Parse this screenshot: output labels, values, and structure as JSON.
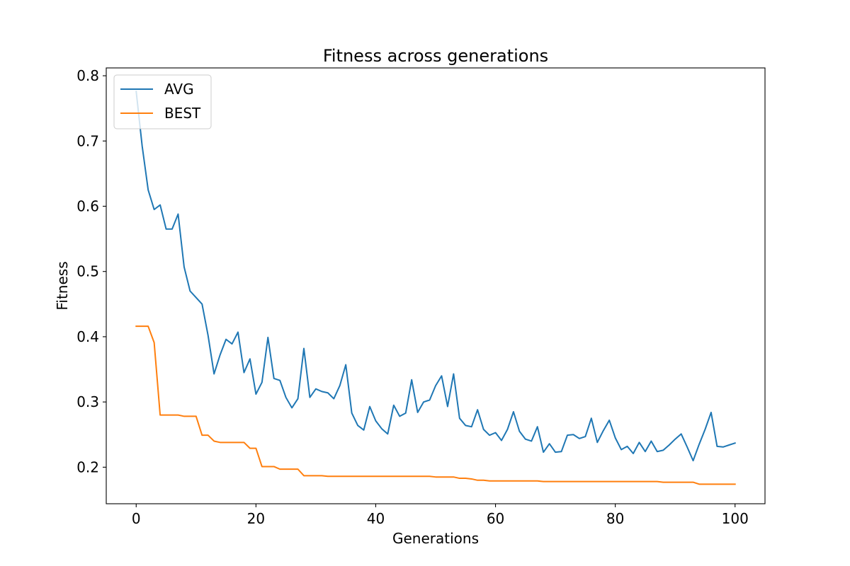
{
  "chart_data": {
    "type": "line",
    "title": "Fitness across generations",
    "xlabel": "Generations",
    "ylabel": "Fitness",
    "xlim": [
      -5,
      105
    ],
    "ylim": [
      0.144,
      0.812
    ],
    "xticks": [
      0,
      20,
      40,
      60,
      80,
      100
    ],
    "yticks": [
      0.2,
      0.3,
      0.4,
      0.5,
      0.6,
      0.7,
      0.8
    ],
    "grid": false,
    "legend": "top-left",
    "x": [
      0,
      1,
      2,
      3,
      4,
      5,
      6,
      7,
      8,
      9,
      10,
      11,
      12,
      13,
      14,
      15,
      16,
      17,
      18,
      19,
      20,
      21,
      22,
      23,
      24,
      25,
      26,
      27,
      28,
      29,
      30,
      31,
      32,
      33,
      34,
      35,
      36,
      37,
      38,
      39,
      40,
      41,
      42,
      43,
      44,
      45,
      46,
      47,
      48,
      49,
      50,
      51,
      52,
      53,
      54,
      55,
      56,
      57,
      58,
      59,
      60,
      61,
      62,
      63,
      64,
      65,
      66,
      67,
      68,
      69,
      70,
      71,
      72,
      73,
      74,
      75,
      76,
      77,
      78,
      79,
      80,
      81,
      82,
      83,
      84,
      85,
      86,
      87,
      88,
      89,
      90,
      91,
      92,
      93,
      94,
      95,
      96,
      97,
      98,
      99,
      100
    ],
    "series": [
      {
        "name": "AVG",
        "color": "#1f77b4",
        "values": [
          0.776,
          0.692,
          0.625,
          0.595,
          0.602,
          0.565,
          0.565,
          0.588,
          0.507,
          0.47,
          0.46,
          0.45,
          0.402,
          0.343,
          0.372,
          0.396,
          0.389,
          0.407,
          0.345,
          0.366,
          0.312,
          0.33,
          0.399,
          0.336,
          0.333,
          0.307,
          0.291,
          0.305,
          0.382,
          0.307,
          0.32,
          0.316,
          0.314,
          0.305,
          0.325,
          0.357,
          0.283,
          0.264,
          0.257,
          0.293,
          0.271,
          0.259,
          0.251,
          0.295,
          0.278,
          0.283,
          0.334,
          0.284,
          0.3,
          0.303,
          0.325,
          0.34,
          0.293,
          0.343,
          0.275,
          0.264,
          0.262,
          0.288,
          0.258,
          0.249,
          0.253,
          0.241,
          0.258,
          0.285,
          0.255,
          0.243,
          0.24,
          0.262,
          0.223,
          0.236,
          0.223,
          0.224,
          0.249,
          0.25,
          0.244,
          0.247,
          0.275,
          0.238,
          0.256,
          0.272,
          0.245,
          0.227,
          0.232,
          0.221,
          0.238,
          0.224,
          0.24,
          0.224,
          0.226,
          0.234,
          0.243,
          0.251,
          0.231,
          0.21,
          0.235,
          0.258,
          0.284,
          0.232,
          0.231,
          0.234,
          0.237
        ]
      },
      {
        "name": "BEST",
        "color": "#ff7f0e",
        "values": [
          0.416,
          0.416,
          0.416,
          0.391,
          0.28,
          0.28,
          0.28,
          0.28,
          0.278,
          0.278,
          0.278,
          0.249,
          0.249,
          0.24,
          0.238,
          0.238,
          0.238,
          0.238,
          0.238,
          0.229,
          0.229,
          0.201,
          0.201,
          0.201,
          0.197,
          0.197,
          0.197,
          0.197,
          0.187,
          0.187,
          0.187,
          0.187,
          0.186,
          0.186,
          0.186,
          0.186,
          0.186,
          0.186,
          0.186,
          0.186,
          0.186,
          0.186,
          0.186,
          0.186,
          0.186,
          0.186,
          0.186,
          0.186,
          0.186,
          0.186,
          0.185,
          0.185,
          0.185,
          0.185,
          0.183,
          0.183,
          0.182,
          0.18,
          0.18,
          0.179,
          0.179,
          0.179,
          0.179,
          0.179,
          0.179,
          0.179,
          0.179,
          0.179,
          0.178,
          0.178,
          0.178,
          0.178,
          0.178,
          0.178,
          0.178,
          0.178,
          0.178,
          0.178,
          0.178,
          0.178,
          0.178,
          0.178,
          0.178,
          0.178,
          0.178,
          0.178,
          0.178,
          0.178,
          0.177,
          0.177,
          0.177,
          0.177,
          0.177,
          0.177,
          0.174,
          0.174,
          0.174,
          0.174,
          0.174,
          0.174,
          0.174
        ]
      }
    ]
  }
}
